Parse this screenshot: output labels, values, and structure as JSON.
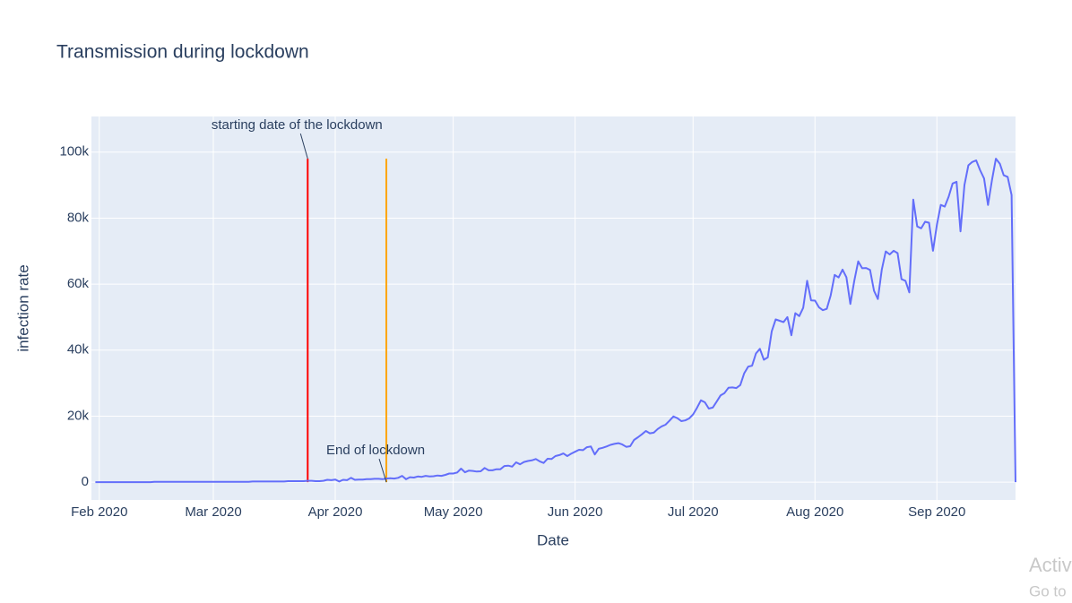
{
  "chart_data": {
    "type": "line",
    "title": "Transmission during lockdown",
    "x_label": "Date",
    "y_label": "infection rate",
    "color": "#636efa",
    "grid": true,
    "x": [
      "2020-01-31",
      "2020-02-01",
      "2020-02-02",
      "2020-02-03",
      "2020-02-04",
      "2020-02-05",
      "2020-02-06",
      "2020-02-07",
      "2020-02-08",
      "2020-02-09",
      "2020-02-10",
      "2020-02-11",
      "2020-02-12",
      "2020-02-13",
      "2020-02-14",
      "2020-02-15",
      "2020-02-16",
      "2020-02-17",
      "2020-02-18",
      "2020-02-19",
      "2020-02-20",
      "2020-02-21",
      "2020-02-22",
      "2020-02-23",
      "2020-02-24",
      "2020-02-25",
      "2020-02-26",
      "2020-02-27",
      "2020-02-28",
      "2020-02-29",
      "2020-03-01",
      "2020-03-02",
      "2020-03-03",
      "2020-03-04",
      "2020-03-05",
      "2020-03-06",
      "2020-03-07",
      "2020-03-08",
      "2020-03-09",
      "2020-03-10",
      "2020-03-11",
      "2020-03-12",
      "2020-03-13",
      "2020-03-14",
      "2020-03-15",
      "2020-03-16",
      "2020-03-17",
      "2020-03-18",
      "2020-03-19",
      "2020-03-20",
      "2020-03-21",
      "2020-03-22",
      "2020-03-23",
      "2020-03-24",
      "2020-03-25",
      "2020-03-26",
      "2020-03-27",
      "2020-03-28",
      "2020-03-29",
      "2020-03-30",
      "2020-03-31",
      "2020-04-01",
      "2020-04-02",
      "2020-04-03",
      "2020-04-04",
      "2020-04-05",
      "2020-04-06",
      "2020-04-07",
      "2020-04-08",
      "2020-04-09",
      "2020-04-10",
      "2020-04-11",
      "2020-04-12",
      "2020-04-13",
      "2020-04-14",
      "2020-04-15",
      "2020-04-16",
      "2020-04-17",
      "2020-04-18",
      "2020-04-19",
      "2020-04-20",
      "2020-04-21",
      "2020-04-22",
      "2020-04-23",
      "2020-04-24",
      "2020-04-25",
      "2020-04-26",
      "2020-04-27",
      "2020-04-28",
      "2020-04-29",
      "2020-04-30",
      "2020-05-01",
      "2020-05-02",
      "2020-05-03",
      "2020-05-04",
      "2020-05-05",
      "2020-05-06",
      "2020-05-07",
      "2020-05-08",
      "2020-05-09",
      "2020-05-10",
      "2020-05-11",
      "2020-05-12",
      "2020-05-13",
      "2020-05-14",
      "2020-05-15",
      "2020-05-16",
      "2020-05-17",
      "2020-05-18",
      "2020-05-19",
      "2020-05-20",
      "2020-05-21",
      "2020-05-22",
      "2020-05-23",
      "2020-05-24",
      "2020-05-25",
      "2020-05-26",
      "2020-05-27",
      "2020-05-28",
      "2020-05-29",
      "2020-05-30",
      "2020-05-31",
      "2020-06-01",
      "2020-06-02",
      "2020-06-03",
      "2020-06-04",
      "2020-06-05",
      "2020-06-06",
      "2020-06-07",
      "2020-06-08",
      "2020-06-09",
      "2020-06-10",
      "2020-06-11",
      "2020-06-12",
      "2020-06-13",
      "2020-06-14",
      "2020-06-15",
      "2020-06-16",
      "2020-06-17",
      "2020-06-18",
      "2020-06-19",
      "2020-06-20",
      "2020-06-21",
      "2020-06-22",
      "2020-06-23",
      "2020-06-24",
      "2020-06-25",
      "2020-06-26",
      "2020-06-27",
      "2020-06-28",
      "2020-06-29",
      "2020-06-30",
      "2020-07-01",
      "2020-07-02",
      "2020-07-03",
      "2020-07-04",
      "2020-07-05",
      "2020-07-06",
      "2020-07-07",
      "2020-07-08",
      "2020-07-09",
      "2020-07-10",
      "2020-07-11",
      "2020-07-12",
      "2020-07-13",
      "2020-07-14",
      "2020-07-15",
      "2020-07-16",
      "2020-07-17",
      "2020-07-18",
      "2020-07-19",
      "2020-07-20",
      "2020-07-21",
      "2020-07-22",
      "2020-07-23",
      "2020-07-24",
      "2020-07-25",
      "2020-07-26",
      "2020-07-27",
      "2020-07-28",
      "2020-07-29",
      "2020-07-30",
      "2020-07-31",
      "2020-08-01",
      "2020-08-02",
      "2020-08-03",
      "2020-08-04",
      "2020-08-05",
      "2020-08-06",
      "2020-08-07",
      "2020-08-08",
      "2020-08-09",
      "2020-08-10",
      "2020-08-11",
      "2020-08-12",
      "2020-08-13",
      "2020-08-14",
      "2020-08-15",
      "2020-08-16",
      "2020-08-17",
      "2020-08-18",
      "2020-08-19",
      "2020-08-20",
      "2020-08-21",
      "2020-08-22",
      "2020-08-23",
      "2020-08-24",
      "2020-08-25",
      "2020-08-26",
      "2020-08-27",
      "2020-08-28",
      "2020-08-29",
      "2020-08-30",
      "2020-08-31",
      "2020-09-01",
      "2020-09-02",
      "2020-09-03",
      "2020-09-04",
      "2020-09-05",
      "2020-09-06",
      "2020-09-07",
      "2020-09-08",
      "2020-09-09",
      "2020-09-10",
      "2020-09-11",
      "2020-09-12",
      "2020-09-13",
      "2020-09-14",
      "2020-09-15",
      "2020-09-16",
      "2020-09-17",
      "2020-09-18",
      "2020-09-19",
      "2020-09-20",
      "2020-09-21"
    ],
    "values": [
      0,
      0,
      0,
      0,
      0,
      0,
      0,
      0,
      0,
      0,
      0,
      0,
      0,
      0,
      0,
      100,
      100,
      100,
      100,
      100,
      100,
      100,
      100,
      100,
      100,
      100,
      100,
      100,
      100,
      100,
      100,
      100,
      100,
      100,
      100,
      100,
      100,
      100,
      100,
      100,
      200,
      200,
      200,
      200,
      200,
      200,
      200,
      200,
      200,
      300,
      300,
      300,
      300,
      300,
      400,
      400,
      300,
      300,
      400,
      700,
      600,
      800,
      200,
      700,
      600,
      1300,
      700,
      800,
      800,
      900,
      900,
      1000,
      1000,
      900,
      1100,
      1200,
      1100,
      1300,
      1900,
      900,
      1500,
      1400,
      1700,
      1600,
      1900,
      1700,
      1800,
      2000,
      1900,
      2200,
      2600,
      2600,
      2900,
      4100,
      3000,
      3500,
      3400,
      3200,
      3300,
      4300,
      3600,
      3600,
      3900,
      3900,
      4900,
      5000,
      4700,
      6000,
      5400,
      6100,
      6400,
      6600,
      7000,
      6300,
      5800,
      7100,
      7000,
      7900,
      8200,
      8700,
      7900,
      8600,
      9200,
      9800,
      9700,
      10600,
      10800,
      8400,
      10100,
      10400,
      10800,
      11300,
      11600,
      11800,
      11400,
      10700,
      10900,
      12800,
      13600,
      14500,
      15500,
      14800,
      15000,
      16100,
      16900,
      17400,
      18600,
      19900,
      19400,
      18500,
      18700,
      19300,
      20500,
      22500,
      24800,
      24200,
      22300,
      22600,
      24400,
      26300,
      27000,
      28600,
      28700,
      28500,
      29400,
      33000,
      35000,
      35300,
      39000,
      40400,
      37100,
      37800,
      45700,
      49300,
      48900,
      48500,
      50000,
      44500,
      51200,
      50300,
      52800,
      61000,
      55100,
      55000,
      53000,
      52100,
      52500,
      56600,
      62800,
      62000,
      64400,
      62100,
      54000,
      61000,
      66900,
      64800,
      64900,
      64300,
      58000,
      55500,
      64400,
      69900,
      69000,
      70100,
      69400,
      61500,
      61000,
      57500,
      85600,
      77500,
      76900,
      78900,
      78600,
      70100,
      78000,
      84000,
      83500,
      86500,
      90500,
      91000,
      76000,
      90000,
      96000,
      97000,
      97500,
      94500,
      92000,
      84000,
      91500,
      98000,
      96500,
      93000,
      92500,
      87000,
      0
    ],
    "xlim": [
      "2020-01-30",
      "2020-09-21"
    ],
    "xticks": [
      {
        "value": "2020-02-01",
        "label": "Feb 2020"
      },
      {
        "value": "2020-03-01",
        "label": "Mar 2020"
      },
      {
        "value": "2020-04-01",
        "label": "Apr 2020"
      },
      {
        "value": "2020-05-01",
        "label": "May 2020"
      },
      {
        "value": "2020-06-01",
        "label": "Jun 2020"
      },
      {
        "value": "2020-07-01",
        "label": "Jul 2020"
      },
      {
        "value": "2020-08-01",
        "label": "Aug 2020"
      },
      {
        "value": "2020-09-01",
        "label": "Sep 2020"
      }
    ],
    "ylim": [
      -5400,
      110800
    ],
    "yticks": [
      0,
      {
        "value": 20000,
        "label": "20k"
      },
      {
        "value": 40000,
        "label": "40k"
      },
      {
        "value": 60000,
        "label": "60k"
      },
      {
        "value": 80000,
        "label": "80k"
      },
      {
        "value": 100000,
        "label": "100k"
      }
    ],
    "vlines": [
      {
        "x": "2020-03-25",
        "y0": 0,
        "y1": 98000,
        "color": "#ff0000"
      },
      {
        "x": "2020-04-14",
        "y0": 0,
        "y1": 98000,
        "color": "#ffa500"
      }
    ],
    "annotations": [
      {
        "text": "starting date of the lockdown",
        "x": "2020-03-25",
        "y": 98000
      },
      {
        "text": "End of lockdown",
        "x": "2020-04-14",
        "y": 0
      }
    ]
  },
  "overlay_text": [
    "Activ",
    "Go to"
  ]
}
